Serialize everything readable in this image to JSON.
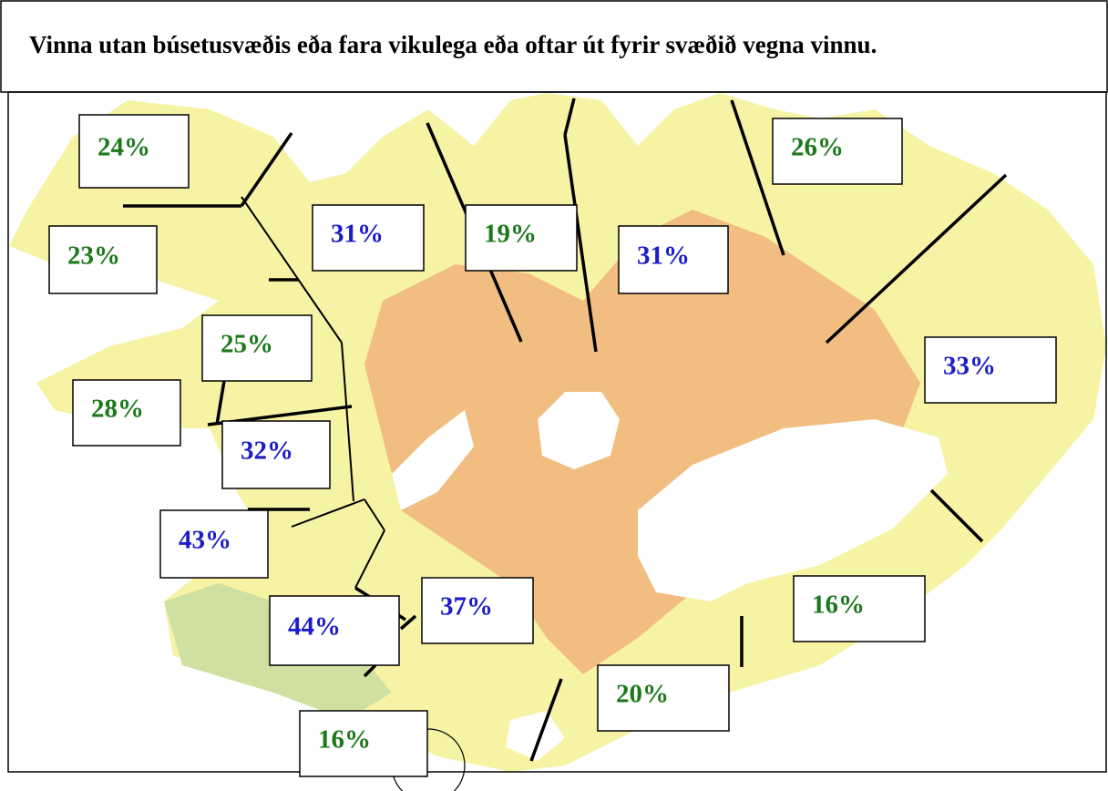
{
  "title": "Vinna utan búsetusvæðis eða fara vikulega eða oftar út fyrir svæðið vegna vinnu.",
  "labels": [
    {
      "text": "24%",
      "color": "#1c7a1c"
    },
    {
      "text": "23%",
      "color": "#1c7a1c"
    },
    {
      "text": "31%",
      "color": "#1c1cc8"
    },
    {
      "text": "19%",
      "color": "#1c7a1c"
    },
    {
      "text": "31%",
      "color": "#1c1cc8"
    },
    {
      "text": "26%",
      "color": "#1c7a1c"
    },
    {
      "text": "25%",
      "color": "#1c7a1c"
    },
    {
      "text": "28%",
      "color": "#1c7a1c"
    },
    {
      "text": "32%",
      "color": "#1c1cc8"
    },
    {
      "text": "33%",
      "color": "#1c1cc8"
    },
    {
      "text": "43%",
      "color": "#1c1cc8"
    },
    {
      "text": "44%",
      "color": "#1c1cc8"
    },
    {
      "text": "37%",
      "color": "#1c1cc8"
    },
    {
      "text": "16%",
      "color": "#1c7a1c"
    },
    {
      "text": "20%",
      "color": "#1c7a1c"
    },
    {
      "text": "16%",
      "color": "#1c7a1c"
    }
  ]
}
